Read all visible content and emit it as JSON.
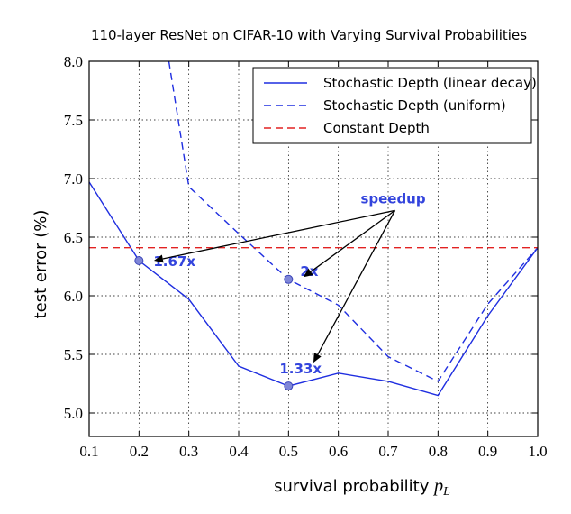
{
  "chart_data": {
    "type": "line",
    "title": "110-layer ResNet on CIFAR-10 with Varying Survival Probabilities",
    "xlabel_text": "survival probability ",
    "xlabel_math_var": "p",
    "xlabel_math_sub": "L",
    "ylabel": "test error (%)",
    "xlim": [
      0.1,
      1.0
    ],
    "ylim": [
      4.8,
      8.0
    ],
    "xticks": [
      "0.1",
      "0.2",
      "0.3",
      "0.4",
      "0.5",
      "0.6",
      "0.7",
      "0.8",
      "0.9",
      "1.0"
    ],
    "yticks": [
      "5.0",
      "5.5",
      "6.0",
      "6.5",
      "7.0",
      "7.5",
      "8.0"
    ],
    "grid": true,
    "legend_position": "top-right",
    "series": [
      {
        "name": "Stochastic Depth (linear decay)",
        "style": "solid",
        "color": "#1f2ee0",
        "x": [
          0.1,
          0.2,
          0.3,
          0.4,
          0.5,
          0.6,
          0.7,
          0.8,
          0.9,
          1.0
        ],
        "y": [
          6.97,
          6.3,
          5.97,
          5.4,
          5.23,
          5.34,
          5.27,
          5.15,
          5.83,
          6.41
        ]
      },
      {
        "name": "Stochastic Depth (uniform)",
        "style": "dashed",
        "color": "#1f2ee0",
        "x": [
          0.26,
          0.3,
          0.4,
          0.5,
          0.6,
          0.7,
          0.8,
          0.9,
          1.0
        ],
        "y": [
          8.0,
          6.93,
          6.53,
          6.14,
          5.92,
          5.48,
          5.27,
          5.93,
          6.41
        ]
      },
      {
        "name": "Constant Depth",
        "style": "dashed",
        "color": "#e22222",
        "x": [
          0.1,
          1.0
        ],
        "y": [
          6.41,
          6.41
        ]
      }
    ],
    "markers": [
      {
        "x": 0.2,
        "y": 6.3,
        "label": "1.67x"
      },
      {
        "x": 0.5,
        "y": 6.14,
        "label": "2x"
      },
      {
        "x": 0.5,
        "y": 5.23,
        "label": "1.33x"
      }
    ],
    "annotation": {
      "text": "speedup",
      "x": 0.71,
      "y": 6.82,
      "arrow_targets": [
        {
          "x": 0.23,
          "y": 6.3
        },
        {
          "x": 0.53,
          "y": 6.16
        },
        {
          "x": 0.55,
          "y": 5.43
        }
      ]
    },
    "colors": {
      "series_blue": "#1f2ee0",
      "constant_red": "#e22222",
      "marker_fill": "#7f86d8",
      "annotation_blue": "#3344dd",
      "arrow": "#000000"
    }
  }
}
